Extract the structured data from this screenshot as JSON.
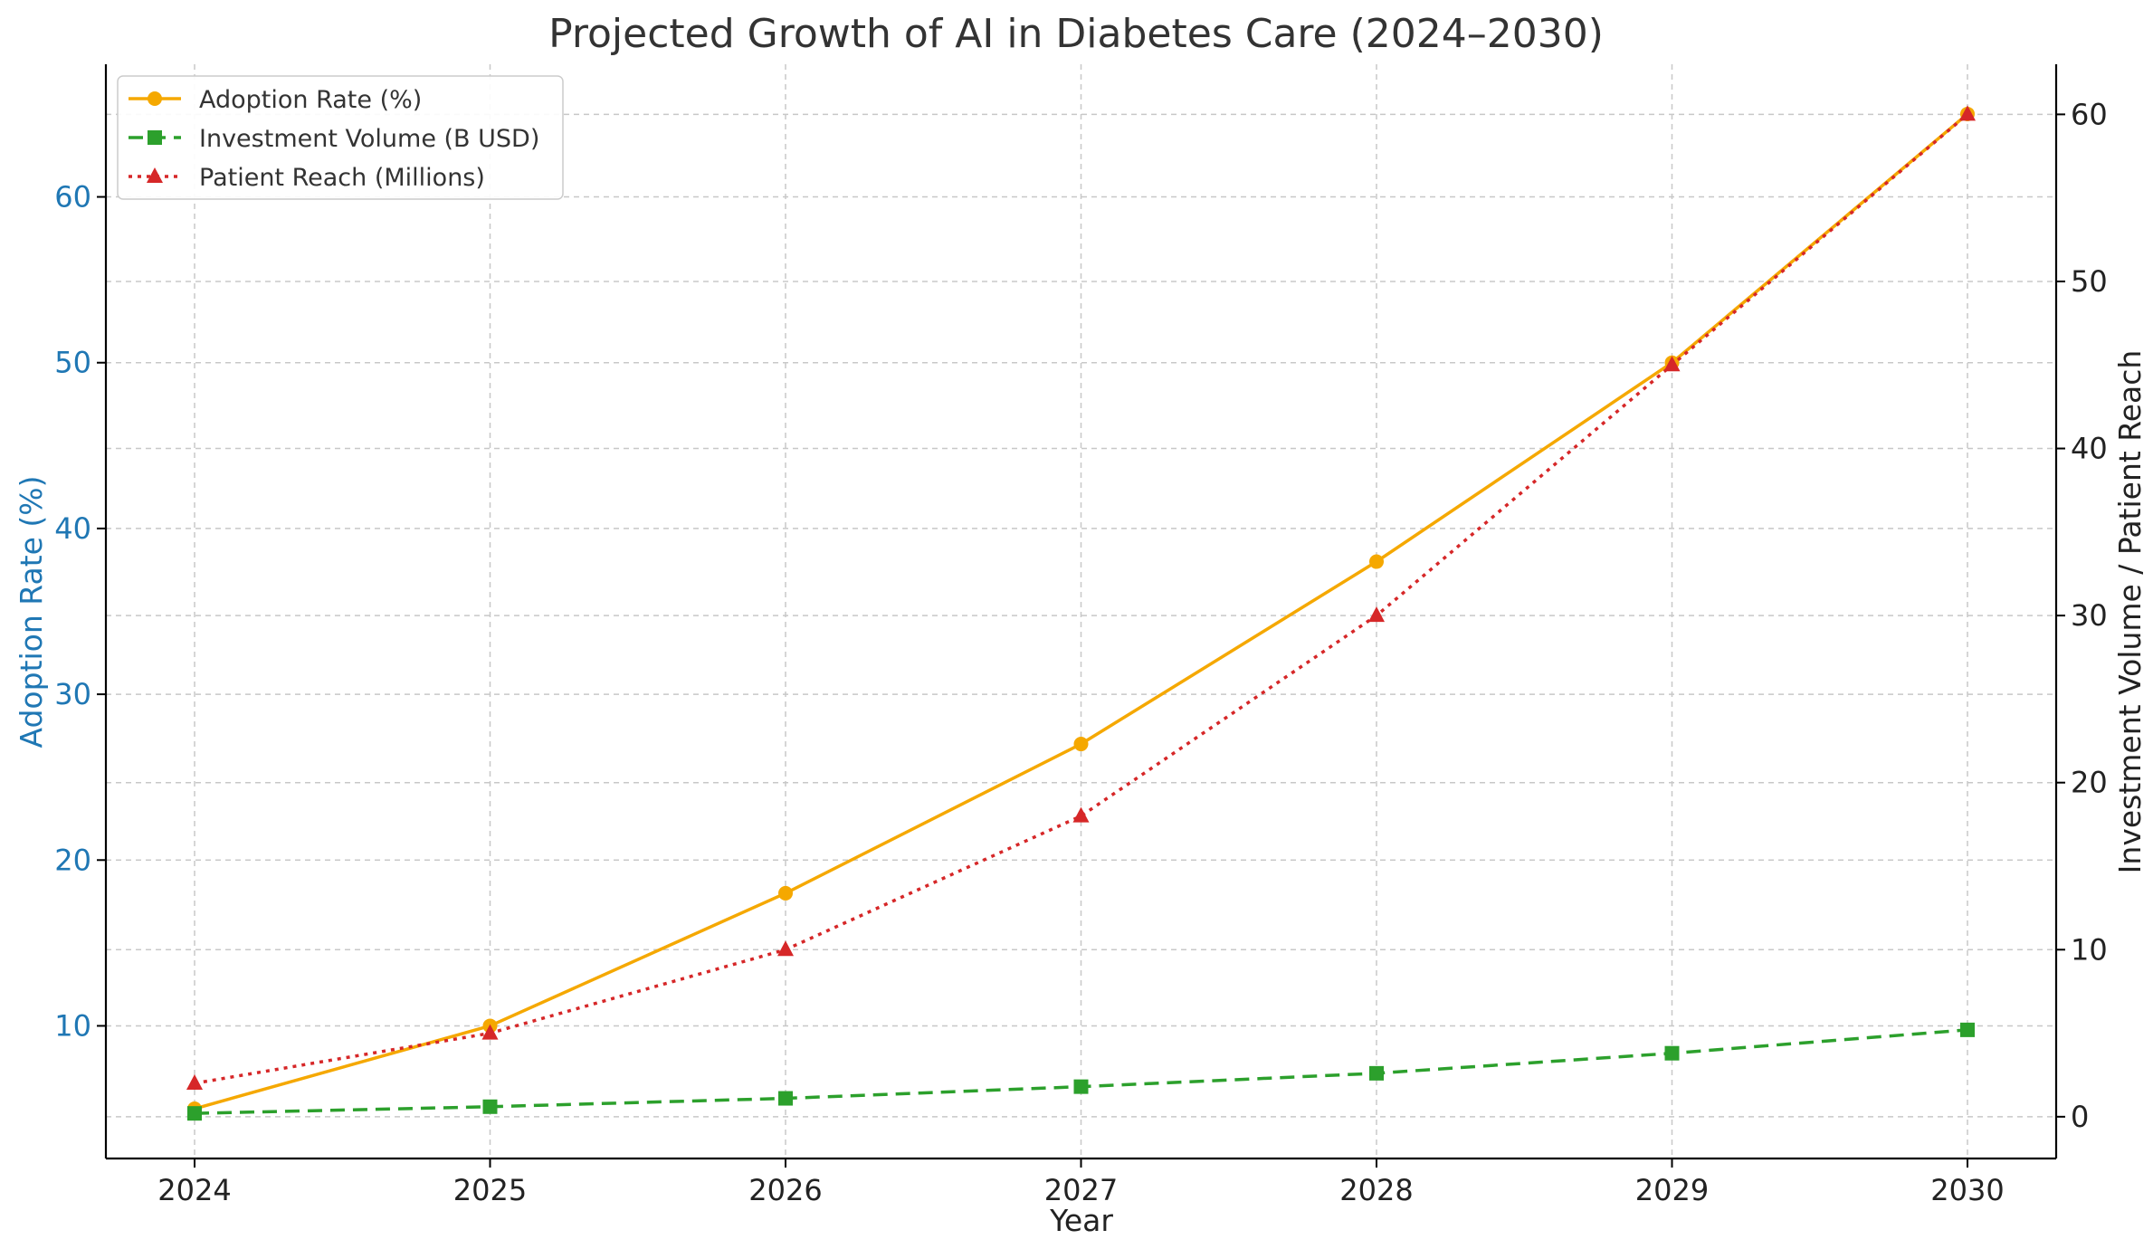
{
  "chart_data": {
    "type": "line",
    "title": "Projected Growth of AI in Diabetes Care (2024–2030)",
    "xlabel": "Year",
    "ylabel_left": "Adoption Rate (%)",
    "ylabel_right": "Investment Volume / Patient Reach",
    "x": [
      "2024",
      "2025",
      "2026",
      "2027",
      "2028",
      "2029",
      "2030"
    ],
    "ylim_left": [
      2.0,
      68.0
    ],
    "ylim_right": [
      -2.5,
      63.0
    ],
    "yticks_left": [
      "10",
      "20",
      "30",
      "40",
      "50",
      "60"
    ],
    "yticks_right": [
      "0",
      "10",
      "20",
      "30",
      "40",
      "50",
      "60"
    ],
    "grid": true,
    "legend_position": "upper-left",
    "series": [
      {
        "name": "Adoption Rate (%)",
        "axis": "left",
        "color": "#f5a800",
        "line_style": "solid",
        "marker": "circle",
        "values": [
          5,
          10,
          18,
          27,
          38,
          50,
          65
        ]
      },
      {
        "name": "Investment Volume (B USD)",
        "axis": "right",
        "color": "#2ca02c",
        "line_style": "dashed",
        "marker": "square",
        "values": [
          0.2,
          0.6,
          1.1,
          1.8,
          2.6,
          3.8,
          5.2
        ]
      },
      {
        "name": "Patient Reach (Millions)",
        "axis": "right",
        "color": "#d62728",
        "line_style": "dotted",
        "marker": "triangle",
        "values": [
          2,
          5,
          10,
          18,
          30,
          45,
          60
        ]
      }
    ]
  }
}
